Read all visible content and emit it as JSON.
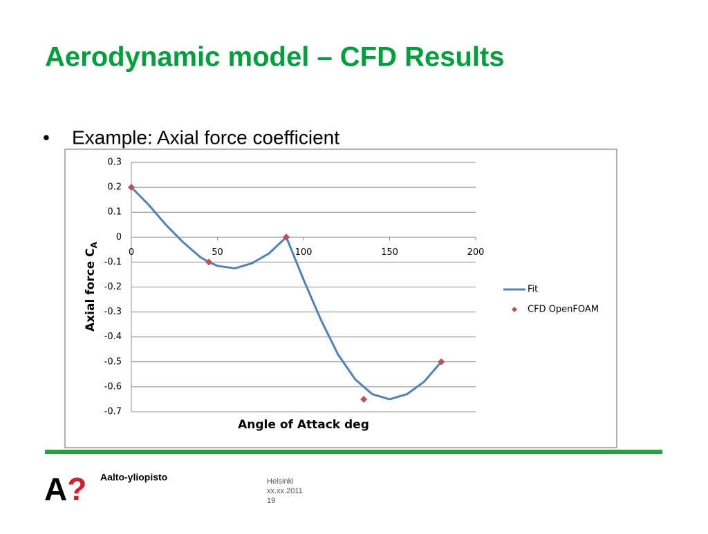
{
  "slide": {
    "title": "Aerodynamic model – CFD Results",
    "bullet": "Example: Axial force coefficient",
    "logo": [
      "A",
      "?"
    ],
    "org": "Aalto-yliopisto",
    "footer": [
      "Helsinki",
      "xx.xx.2011",
      "19"
    ]
  },
  "chart_data": {
    "type": "line",
    "x_label": "Angle of Attack  deg",
    "y_label": "Axial force C",
    "y_label_sub": "A",
    "xlim": [
      0,
      200
    ],
    "xticks": [
      0,
      50,
      100,
      150,
      200
    ],
    "ylim": [
      -0.7,
      0.3
    ],
    "yticks": [
      0.3,
      0.2,
      0.1,
      0,
      -0.1,
      -0.2,
      -0.3,
      -0.4,
      -0.5,
      -0.6,
      -0.7
    ],
    "grid": true,
    "legend": "right",
    "series": [
      {
        "name": "Fit",
        "type": "line",
        "color": "#4f81bd",
        "x": [
          0,
          10,
          20,
          30,
          40,
          45,
          50,
          60,
          70,
          80,
          90,
          100,
          110,
          120,
          130,
          140,
          150,
          160,
          170,
          180
        ],
        "values": [
          0.2,
          0.13,
          0.05,
          -0.02,
          -0.08,
          -0.1,
          -0.115,
          -0.125,
          -0.105,
          -0.065,
          0,
          -0.17,
          -0.33,
          -0.47,
          -0.57,
          -0.63,
          -0.65,
          -0.63,
          -0.58,
          -0.5
        ]
      },
      {
        "name": "CFD OpenFOAM",
        "type": "scatter",
        "color": "#c0504d",
        "x": [
          0,
          45,
          90,
          135,
          180
        ],
        "values": [
          0.2,
          -0.1,
          0,
          -0.65,
          -0.5
        ]
      }
    ]
  }
}
